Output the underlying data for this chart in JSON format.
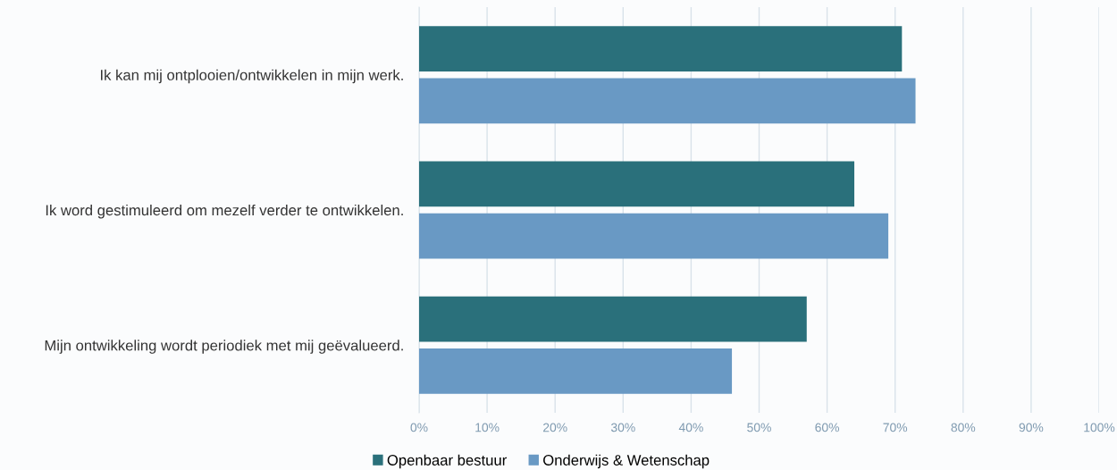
{
  "chart_data": {
    "type": "bar",
    "orientation": "horizontal",
    "categories": [
      "Ik kan mij ontplooien/ontwikkelen in mijn werk.",
      "Ik word gestimuleerd om mezelf verder te ontwikkelen.",
      "Mijn ontwikkeling wordt periodiek met mij geëvalueerd."
    ],
    "series": [
      {
        "name": "Openbaar bestuur",
        "color": "#2a707b",
        "values": [
          71,
          64,
          57
        ]
      },
      {
        "name": "Onderwijs & Wetenschap",
        "color": "#6999c4",
        "values": [
          73,
          69,
          46
        ]
      }
    ],
    "xlim": [
      0,
      100
    ],
    "xticks": [
      {
        "value": 0,
        "label": "0%"
      },
      {
        "value": 10,
        "label": "10%"
      },
      {
        "value": 20,
        "label": "20%"
      },
      {
        "value": 30,
        "label": "30%"
      },
      {
        "value": 40,
        "label": "40%"
      },
      {
        "value": 50,
        "label": "50%"
      },
      {
        "value": 60,
        "label": "60%"
      },
      {
        "value": 70,
        "label": "70%"
      },
      {
        "value": 80,
        "label": "80%"
      },
      {
        "value": 90,
        "label": "90%"
      },
      {
        "value": 100,
        "label": "100%"
      }
    ],
    "grid": "x",
    "legend": "bottom"
  }
}
